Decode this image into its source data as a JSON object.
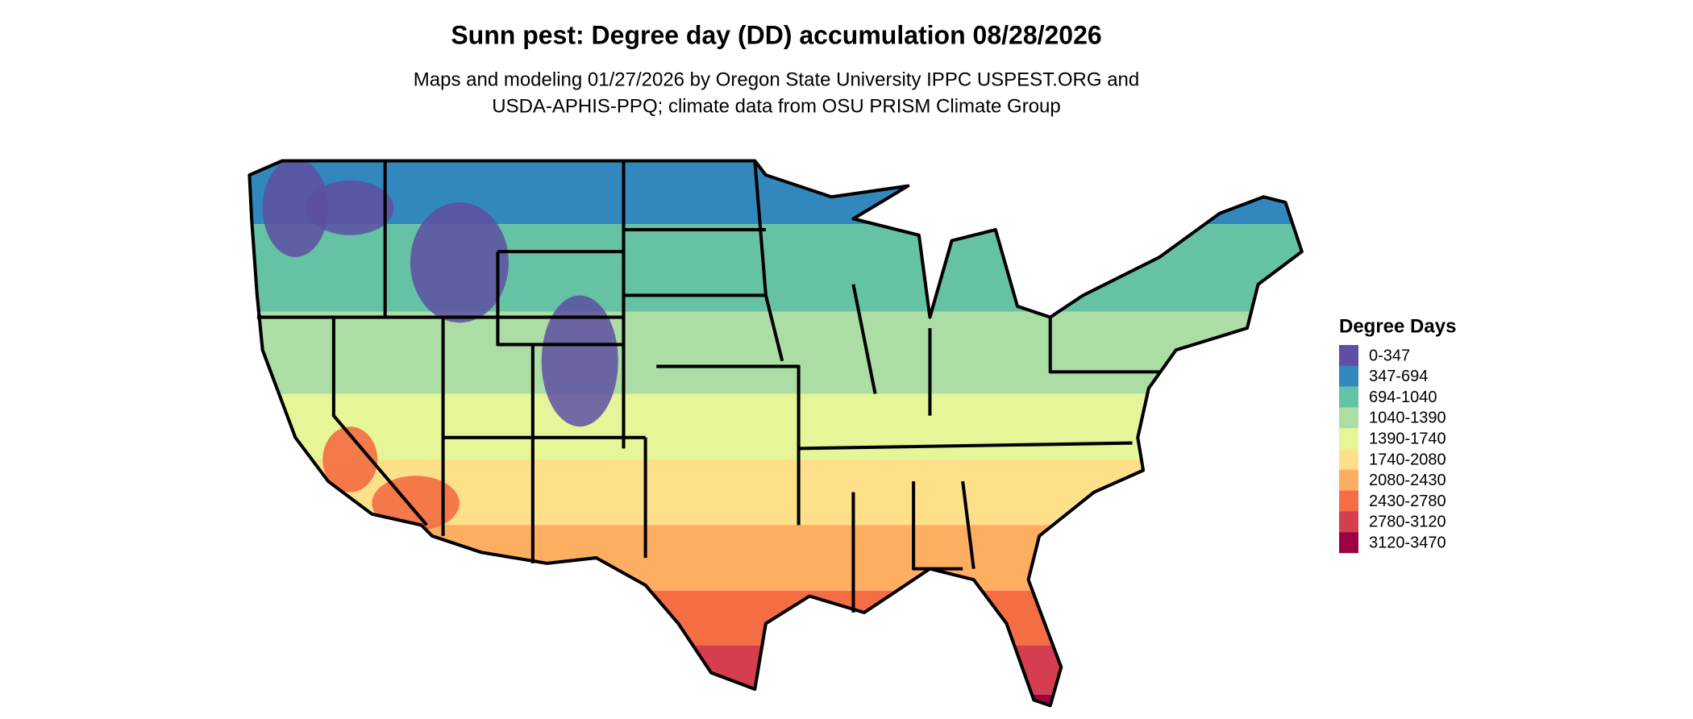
{
  "title": "Sunn pest: Degree day (DD) accumulation 08/28/2026",
  "subtitle": [
    "Maps and modeling 01/27/2026 by Oregon State University IPPC USPEST.ORG and",
    "USDA-APHIS-PPQ; climate data from OSU PRISM Climate Group"
  ],
  "legend": {
    "title": "Degree Days",
    "items": [
      {
        "label": "0-347",
        "color": "#5e4fa2"
      },
      {
        "label": "347-694",
        "color": "#3288bd"
      },
      {
        "label": "694-1040",
        "color": "#66c2a5"
      },
      {
        "label": "1040-1390",
        "color": "#abdda4"
      },
      {
        "label": "1390-1740",
        "color": "#e6f598"
      },
      {
        "label": "1740-2080",
        "color": "#fee08b"
      },
      {
        "label": "2080-2430",
        "color": "#fdae61"
      },
      {
        "label": "2430-2780",
        "color": "#f46d43"
      },
      {
        "label": "2780-3120",
        "color": "#d53e4f"
      },
      {
        "label": "3120-3470",
        "color": "#9e0142"
      }
    ]
  }
}
